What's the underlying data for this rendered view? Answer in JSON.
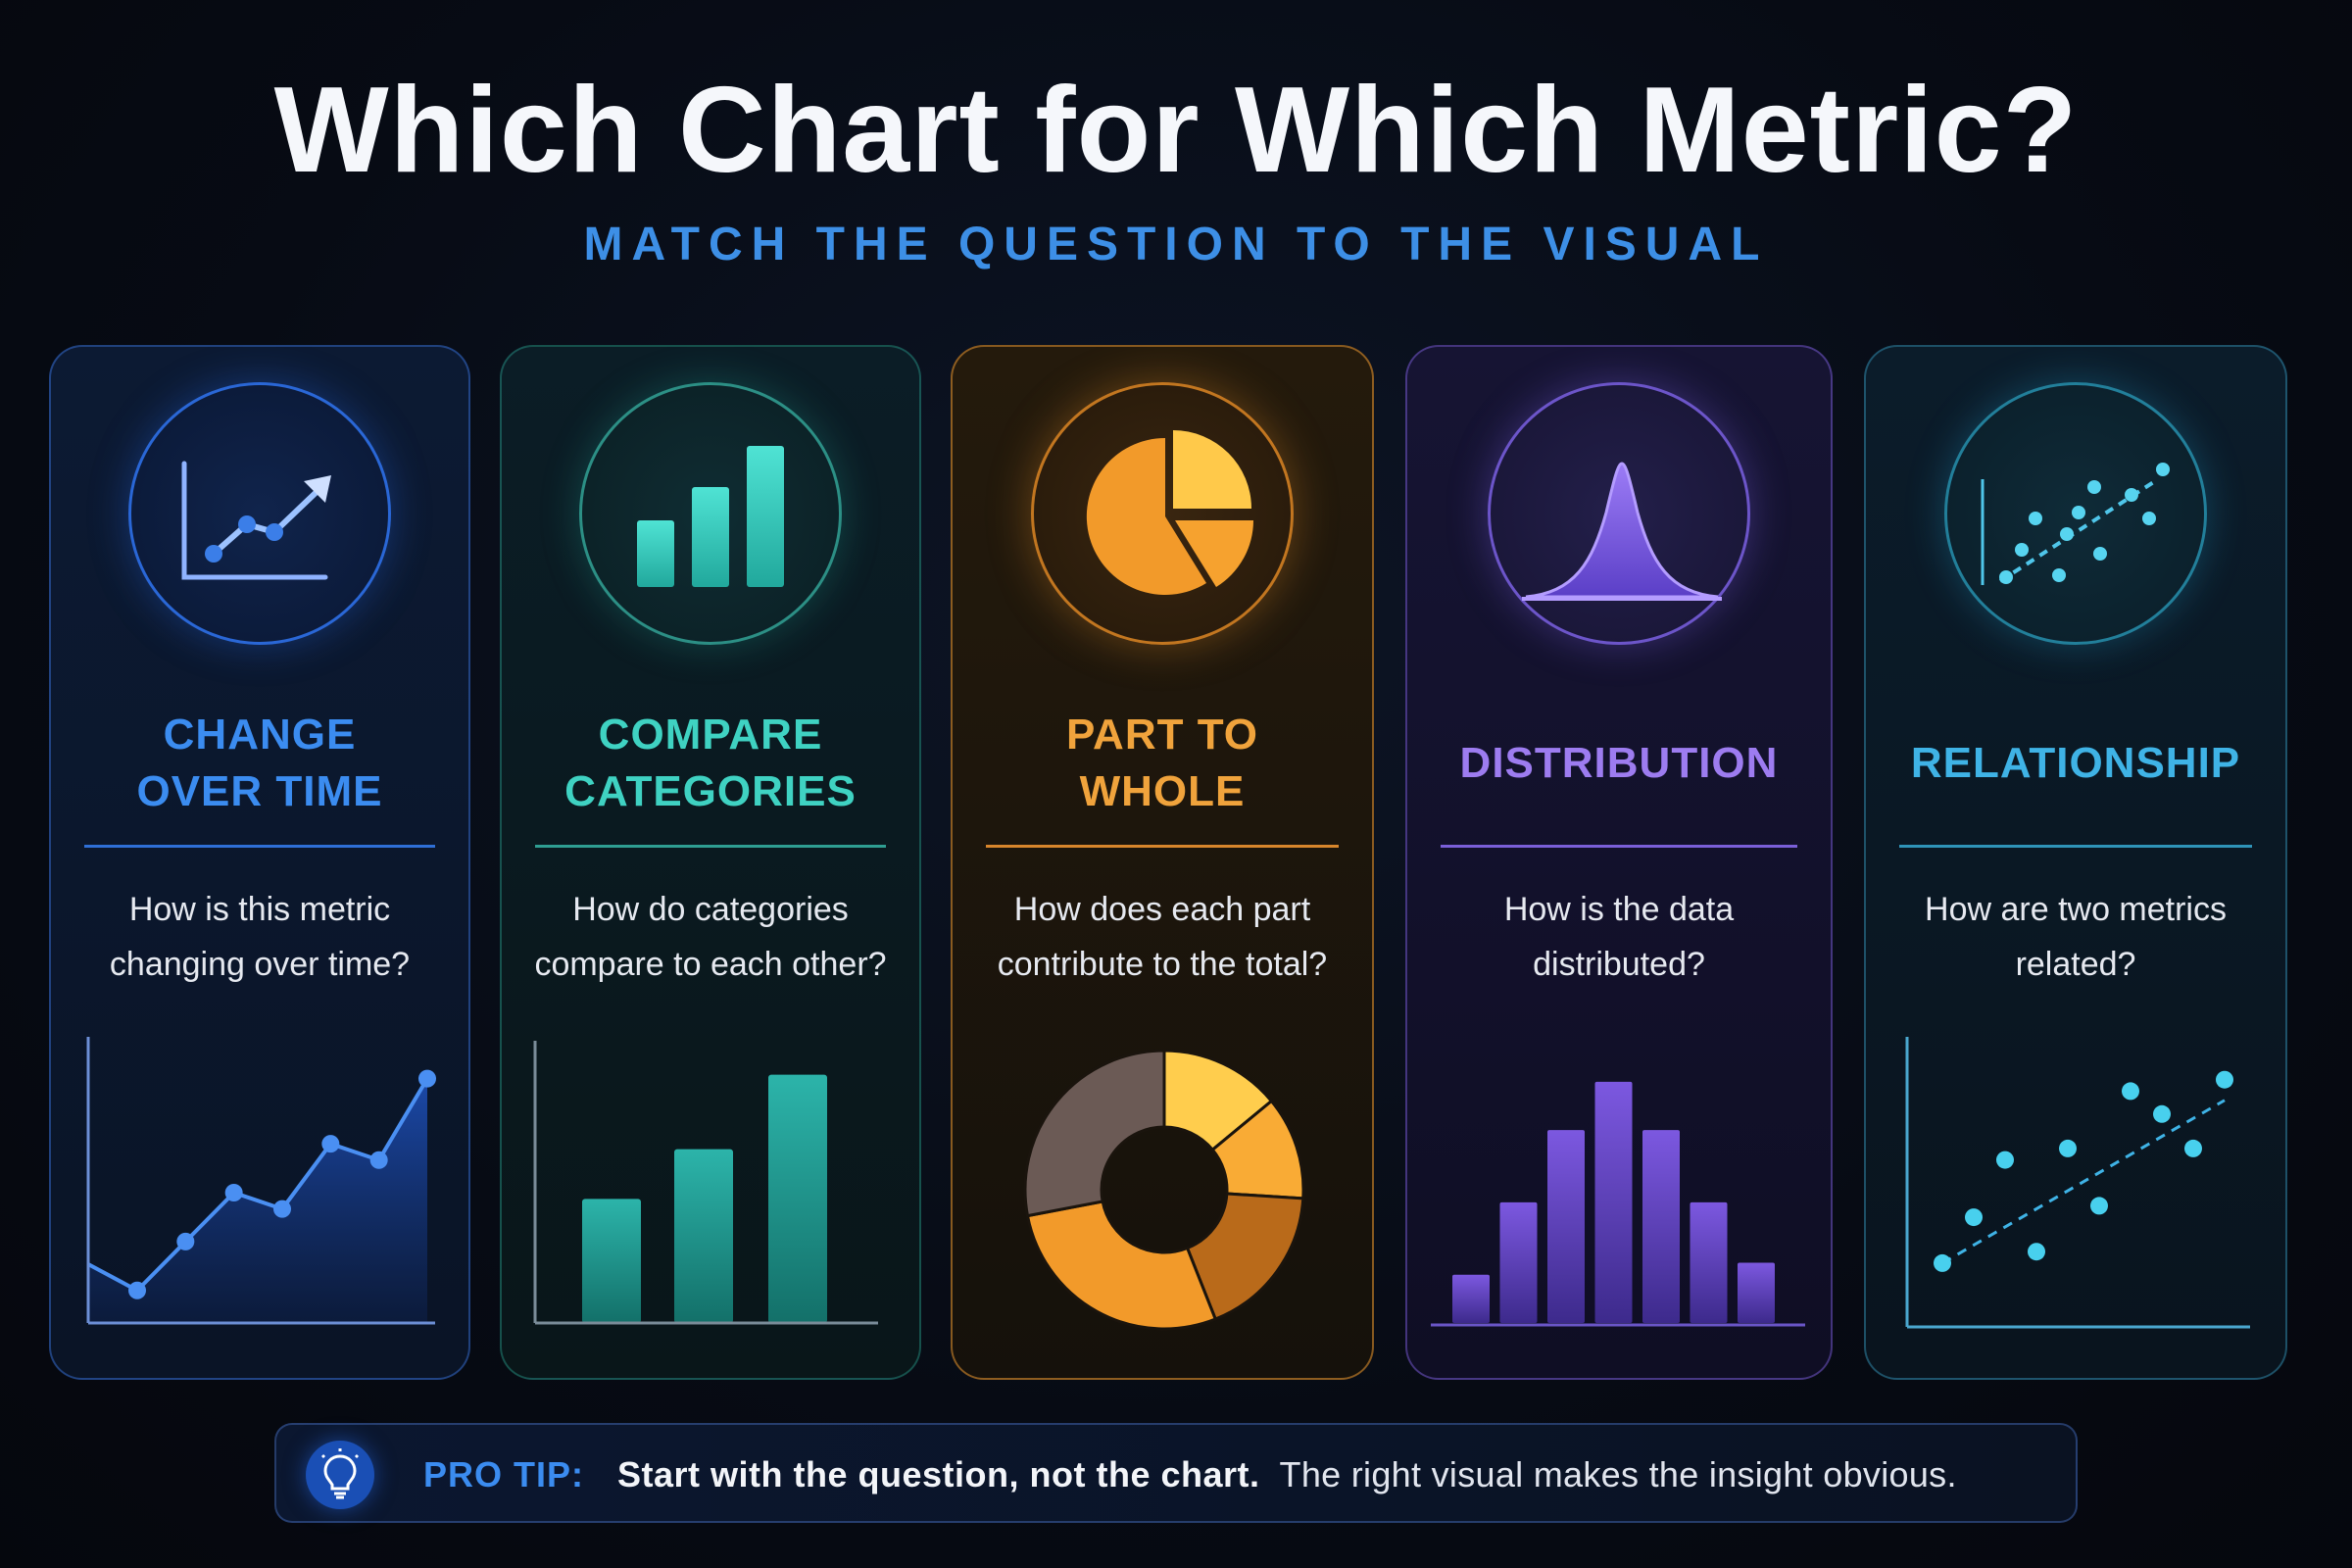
{
  "header": {
    "title": "Which Chart for Which Metric?",
    "subtitle": "MATCH THE QUESTION TO THE VISUAL"
  },
  "cards": [
    {
      "title": "CHANGE\nOVER TIME",
      "question": "How is this metric\nchanging over time?",
      "icon": "line-chart-trend-icon",
      "accent": "#3b8cf0",
      "example_chart": {
        "type": "line",
        "y": [
          2,
          5,
          8,
          7,
          11,
          10,
          15
        ]
      }
    },
    {
      "title": "COMPARE\nCATEGORIES",
      "question": "How do categories\ncompare to each other?",
      "icon": "bar-chart-icon",
      "accent": "#3fd2c2",
      "example_chart": {
        "type": "bar",
        "values": [
          5,
          7,
          10
        ]
      }
    },
    {
      "title": "PART TO\nWHOLE",
      "question": "How does each part\ncontribute to the total?",
      "icon": "pie-chart-icon",
      "accent": "#f0a33c",
      "example_chart": {
        "type": "donut",
        "values": [
          14,
          12,
          18,
          28,
          28
        ]
      }
    },
    {
      "title": "DISTRIBUTION",
      "question": "How is the data\ndistributed?",
      "icon": "bell-curve-icon",
      "accent": "#9d7cf0",
      "example_chart": {
        "type": "histogram",
        "values": [
          2,
          5,
          8,
          10,
          8,
          5,
          2.5
        ]
      }
    },
    {
      "title": "RELATIONSHIP",
      "question": "How are two metrics\nrelated?",
      "icon": "scatter-plot-icon",
      "accent": "#3fb3e6",
      "example_chart": {
        "type": "scatter",
        "points": [
          [
            1,
            1.5
          ],
          [
            2,
            3.5
          ],
          [
            3,
            6
          ],
          [
            4,
            2
          ],
          [
            5,
            6.5
          ],
          [
            6,
            4
          ],
          [
            7,
            9
          ],
          [
            8,
            8
          ],
          [
            9,
            6.5
          ],
          [
            10,
            9.5
          ]
        ]
      }
    }
  ],
  "tip": {
    "label": "PRO TIP:",
    "bold": "Start with the question, not the chart.",
    "text": "The right visual makes the insight obvious.",
    "icon": "lightbulb-icon"
  },
  "colors": {
    "background": "#070b14",
    "subtitle": "#3d8fe6"
  }
}
